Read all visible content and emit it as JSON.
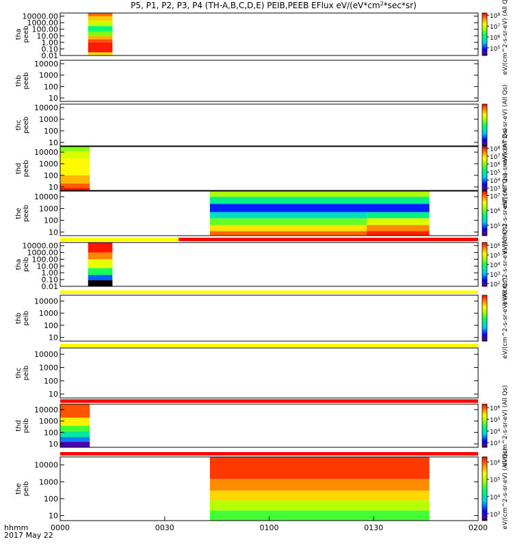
{
  "chart_data": {
    "type": "heatmap",
    "title": "P5, P1, P2, P3, P4 (TH-A,B,C,D,E) PEIB,PEEB EFlux eV/(eV*cm^2*sec*sr)",
    "title_parts": {
      "pre": "P5, P1, P2, P3, P4 (TH-A,B,C,D,E) PEIB,PEEB EFlux eV/(eV*cm",
      "sup1": "2",
      "mid": "*sec*sr)"
    },
    "x_axis": {
      "label": "hhmm",
      "date": "2017 May 22",
      "ticks": [
        "0000",
        "0030",
        "0100",
        "0130",
        "0200"
      ],
      "range_minutes": [
        0,
        120
      ]
    },
    "colors": {
      "band_yellow": "#ffff00",
      "band_red": "#ff0000",
      "band_black": "#000000"
    },
    "panels": [
      {
        "id": "tha-peeb",
        "ylabel": [
          "tha",
          "peeb"
        ],
        "yticks": [
          "10000.00",
          "1000.00",
          "100.00",
          "10.00",
          "1.00",
          "0.10",
          "0.01"
        ],
        "ylim": [
          0.01,
          30000
        ],
        "colorbar": {
          "label": "eV/(cm^2-s-sr-eV) (All Qs)",
          "tick_exponents": [
            "8",
            "7",
            "6",
            "5"
          ],
          "exp_range": [
            4.3,
            8.2
          ]
        },
        "data": [
          {
            "t0": 8,
            "t1": 15,
            "e0": 0.01,
            "e1": 0.03,
            "lvl": 7.3
          },
          {
            "t0": 8,
            "t1": 15,
            "e0": 0.03,
            "e1": 1,
            "lvl": 8.1
          },
          {
            "t0": 8,
            "t1": 15,
            "e0": 1,
            "e1": 3,
            "lvl": 7.9
          },
          {
            "t0": 8,
            "t1": 15,
            "e0": 3,
            "e1": 10,
            "lvl": 7.5
          },
          {
            "t0": 8,
            "t1": 15,
            "e0": 10,
            "e1": 50,
            "lvl": 6.6
          },
          {
            "t0": 8,
            "t1": 15,
            "e0": 50,
            "e1": 300,
            "lvl": 6.1
          },
          {
            "t0": 8,
            "t1": 15,
            "e0": 300,
            "e1": 2000,
            "lvl": 6.9
          },
          {
            "t0": 8,
            "t1": 15,
            "e0": 2000,
            "e1": 10000,
            "lvl": 7.4
          },
          {
            "t0": 8,
            "t1": 15,
            "e0": 10000,
            "e1": 30000,
            "lvl": 7.8
          }
        ]
      },
      {
        "id": "thb-peeb",
        "ylabel": [
          "thb",
          "peeb"
        ],
        "yticks": [
          "10000",
          "1000",
          "100",
          "10"
        ],
        "ylim": [
          5,
          20000
        ],
        "colorbar": null,
        "data": []
      },
      {
        "id": "thc-peeb",
        "ylabel": [
          "thc",
          "peeb"
        ],
        "yticks": [
          "10000",
          "1000",
          "100",
          "10"
        ],
        "ylim": [
          5,
          20000
        ],
        "colorbar": {
          "label": "eV/(cm^2-s-sr-eV) (All Qs)",
          "tick_exponents": [],
          "exp_range": [
            4,
            8
          ]
        },
        "data": []
      },
      {
        "id": "thd-peeb",
        "ylabel": [
          "thd",
          "peeb"
        ],
        "yticks": [
          "10000",
          "1000",
          "100",
          "10"
        ],
        "ylim": [
          5,
          30000
        ],
        "colorbar": {
          "label": "eV/(cm^2-s-sr-eV) (All Qs)",
          "tick_exponents": [
            "8",
            "7",
            "6",
            "5",
            "4",
            "3"
          ],
          "exp_range": [
            2.7,
            8.2
          ]
        },
        "data": [
          {
            "t0": 0,
            "t1": 8.5,
            "e0": 5,
            "e1": 8,
            "lvl": 8.1
          },
          {
            "t0": 0,
            "t1": 8.5,
            "e0": 8,
            "e1": 20,
            "lvl": 7.7
          },
          {
            "t0": 0,
            "t1": 8.5,
            "e0": 20,
            "e1": 100,
            "lvl": 7.2
          },
          {
            "t0": 0,
            "t1": 8.5,
            "e0": 100,
            "e1": 3000,
            "lvl": 6.8
          },
          {
            "t0": 0,
            "t1": 8.5,
            "e0": 3000,
            "e1": 12000,
            "lvl": 6.5
          },
          {
            "t0": 0,
            "t1": 8.5,
            "e0": 12000,
            "e1": 30000,
            "lvl": 6.0
          }
        ]
      },
      {
        "id": "the-peeb",
        "ylabel": [
          "the",
          "peeb"
        ],
        "yticks": [
          "10000",
          "1000",
          "100",
          "10"
        ],
        "ylim": [
          5,
          30000
        ],
        "colorbar": {
          "label": "eV/(cm^2-s-sr-eV) (All Qs)",
          "tick_exponents": [
            "7",
            "6",
            "5"
          ],
          "exp_range": [
            4.3,
            7.3
          ]
        },
        "data": [
          {
            "t0": 43,
            "t1": 88,
            "e0": 5,
            "e1": 12,
            "lvl": 7.0
          },
          {
            "t0": 88,
            "t1": 106,
            "e0": 5,
            "e1": 12,
            "lvl": 7.2
          },
          {
            "t0": 43,
            "t1": 88,
            "e0": 12,
            "e1": 40,
            "lvl": 6.6
          },
          {
            "t0": 88,
            "t1": 106,
            "e0": 12,
            "e1": 40,
            "lvl": 6.9
          },
          {
            "t0": 43,
            "t1": 88,
            "e0": 40,
            "e1": 150,
            "lvl": 6.0
          },
          {
            "t0": 88,
            "t1": 106,
            "e0": 40,
            "e1": 150,
            "lvl": 6.4
          },
          {
            "t0": 43,
            "t1": 88,
            "e0": 150,
            "e1": 500,
            "lvl": 5.4
          },
          {
            "t0": 88,
            "t1": 106,
            "e0": 150,
            "e1": 500,
            "lvl": 5.6
          },
          {
            "t0": 43,
            "t1": 106,
            "e0": 500,
            "e1": 2500,
            "lvl": 4.8
          },
          {
            "t0": 43,
            "t1": 106,
            "e0": 2500,
            "e1": 10000,
            "lvl": 5.6
          },
          {
            "t0": 43,
            "t1": 106,
            "e0": 10000,
            "e1": 30000,
            "lvl": 6.2
          }
        ]
      },
      {
        "id": "tha-peib",
        "ylabel": [
          "tha",
          "peib"
        ],
        "yticks": [
          "10000.00",
          "1000.00",
          "100.00",
          "10.00",
          "1.00",
          "0.10",
          "0.01"
        ],
        "ylim": [
          0.01,
          30000
        ],
        "colorbar": {
          "label": "eV/(cm^2-s-sr-eV) (All Qs)",
          "tick_exponents": [
            "6",
            "5",
            "4",
            "3",
            "2"
          ],
          "exp_range": [
            1.7,
            6.3
          ]
        },
        "data": [
          {
            "t0": 8,
            "t1": 15,
            "e0": 0.01,
            "e1": 0.08,
            "lvl": 1.6
          },
          {
            "t0": 8,
            "t1": 15,
            "e0": 0.08,
            "e1": 0.5,
            "lvl": 2.7
          },
          {
            "t0": 8,
            "t1": 15,
            "e0": 0.5,
            "e1": 5,
            "lvl": 4.0
          },
          {
            "t0": 8,
            "t1": 15,
            "e0": 5,
            "e1": 100,
            "lvl": 5.0
          },
          {
            "t0": 8,
            "t1": 15,
            "e0": 100,
            "e1": 1000,
            "lvl": 5.7
          },
          {
            "t0": 8,
            "t1": 15,
            "e0": 1000,
            "e1": 30000,
            "lvl": 6.2
          }
        ]
      },
      {
        "id": "thb-peib",
        "ylabel": [
          "thb",
          "peib"
        ],
        "yticks": [
          "10000",
          "1000",
          "100",
          "10"
        ],
        "ylim": [
          5,
          30000
        ],
        "colorbar": {
          "label": "eV/(cm^2-s-sr-eV) (All Qs)",
          "tick_exponents": [],
          "exp_range": [
            2,
            6
          ]
        },
        "data": []
      },
      {
        "id": "thc-peib",
        "ylabel": [
          "thc",
          "peib"
        ],
        "yticks": [
          "10000",
          "1000",
          "100",
          "10"
        ],
        "ylim": [
          5,
          30000
        ],
        "colorbar": null,
        "data": []
      },
      {
        "id": "thd-peib",
        "ylabel": [
          "thd",
          "peib"
        ],
        "yticks": [
          "10000",
          "1000",
          "100",
          "10"
        ],
        "ylim": [
          5,
          30000
        ],
        "colorbar": {
          "label": "eV/(cm^2-s-sr-eV) (All Qs)",
          "tick_exponents": [
            "6",
            "5",
            "4",
            "3"
          ],
          "exp_range": [
            2.6,
            6.3
          ]
        },
        "data": [
          {
            "t0": 0,
            "t1": 8.5,
            "e0": 5,
            "e1": 15,
            "lvl": 2.8
          },
          {
            "t0": 0,
            "t1": 8.5,
            "e0": 15,
            "e1": 40,
            "lvl": 3.5
          },
          {
            "t0": 0,
            "t1": 8.5,
            "e0": 40,
            "e1": 120,
            "lvl": 4.1
          },
          {
            "t0": 0,
            "t1": 8.5,
            "e0": 120,
            "e1": 400,
            "lvl": 4.6
          },
          {
            "t0": 0,
            "t1": 8.5,
            "e0": 400,
            "e1": 2000,
            "lvl": 5.4
          },
          {
            "t0": 0,
            "t1": 8.5,
            "e0": 2000,
            "e1": 30000,
            "lvl": 6.0
          }
        ]
      },
      {
        "id": "the-peib",
        "ylabel": [
          "the",
          "peib"
        ],
        "yticks": [
          "10000",
          "1000",
          "100",
          "10"
        ],
        "ylim": [
          5,
          30000
        ],
        "colorbar": {
          "label": "eV/(cm^2-s-sr-eV) (All Qs)",
          "tick_exponents": [
            "6",
            "5",
            "4",
            "3"
          ],
          "exp_range": [
            2.6,
            6.3
          ]
        },
        "data": [
          {
            "t0": 43,
            "t1": 106,
            "e0": 5,
            "e1": 20,
            "lvl": 4.6
          },
          {
            "t0": 43,
            "t1": 106,
            "e0": 20,
            "e1": 80,
            "lvl": 5.0
          },
          {
            "t0": 43,
            "t1": 106,
            "e0": 80,
            "e1": 300,
            "lvl": 5.5
          },
          {
            "t0": 43,
            "t1": 106,
            "e0": 300,
            "e1": 1500,
            "lvl": 5.8
          },
          {
            "t0": 43,
            "t1": 106,
            "e0": 1500,
            "e1": 30000,
            "lvl": 6.1
          }
        ]
      }
    ],
    "status_bands": [
      {
        "after_panel": 4,
        "segments": [
          {
            "t0": 0,
            "t1": 34,
            "color": "yellow"
          },
          {
            "t0": 34,
            "t1": 120,
            "color": "red"
          }
        ]
      },
      {
        "after_panel": 5,
        "segments": [
          {
            "t0": 0,
            "t1": 120,
            "color": "yellow"
          }
        ]
      },
      {
        "after_panel": 6,
        "segments": [
          {
            "t0": 0,
            "t1": 120,
            "color": "yellow"
          }
        ]
      },
      {
        "after_panel": 7,
        "segments": [
          {
            "t0": 0,
            "t1": 120,
            "color": "red"
          }
        ]
      },
      {
        "after_panel": 8,
        "segments": [
          {
            "t0": 0,
            "t1": 120,
            "color": "red"
          }
        ]
      }
    ]
  }
}
